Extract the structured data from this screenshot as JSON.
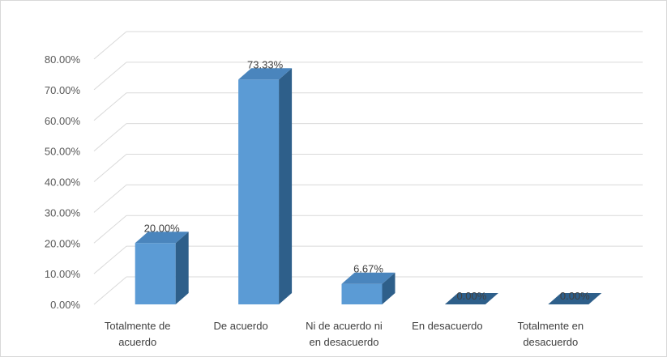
{
  "chart_data": {
    "type": "bar",
    "style": "3d-column",
    "categories": [
      [
        "Totalmente de",
        "acuerdo"
      ],
      [
        "De acuerdo"
      ],
      [
        "Ni de acuerdo ni",
        "en desacuerdo"
      ],
      [
        "En desacuerdo"
      ],
      [
        "Totalmente en",
        "desacuerdo"
      ]
    ],
    "values": [
      20.0,
      73.33,
      6.67,
      0.0,
      0.0
    ],
    "data_labels": [
      "20.00%",
      "73.33%",
      "6.67%",
      "0.00%",
      "0.00%"
    ],
    "y_ticks": [
      "0.00%",
      "10.00%",
      "20.00%",
      "30.00%",
      "40.00%",
      "50.00%",
      "60.00%",
      "70.00%",
      "80.00%"
    ],
    "y_tick_values": [
      0,
      10,
      20,
      30,
      40,
      50,
      60,
      70,
      80
    ],
    "ylim": [
      0,
      80
    ],
    "grid": true,
    "legend": "none",
    "colors": {
      "bar_front": "#5b9bd5",
      "bar_side": "#2e5f8a",
      "bar_top": "#4a85bd",
      "grid": "#d9d9d9",
      "text": "#404040"
    }
  }
}
